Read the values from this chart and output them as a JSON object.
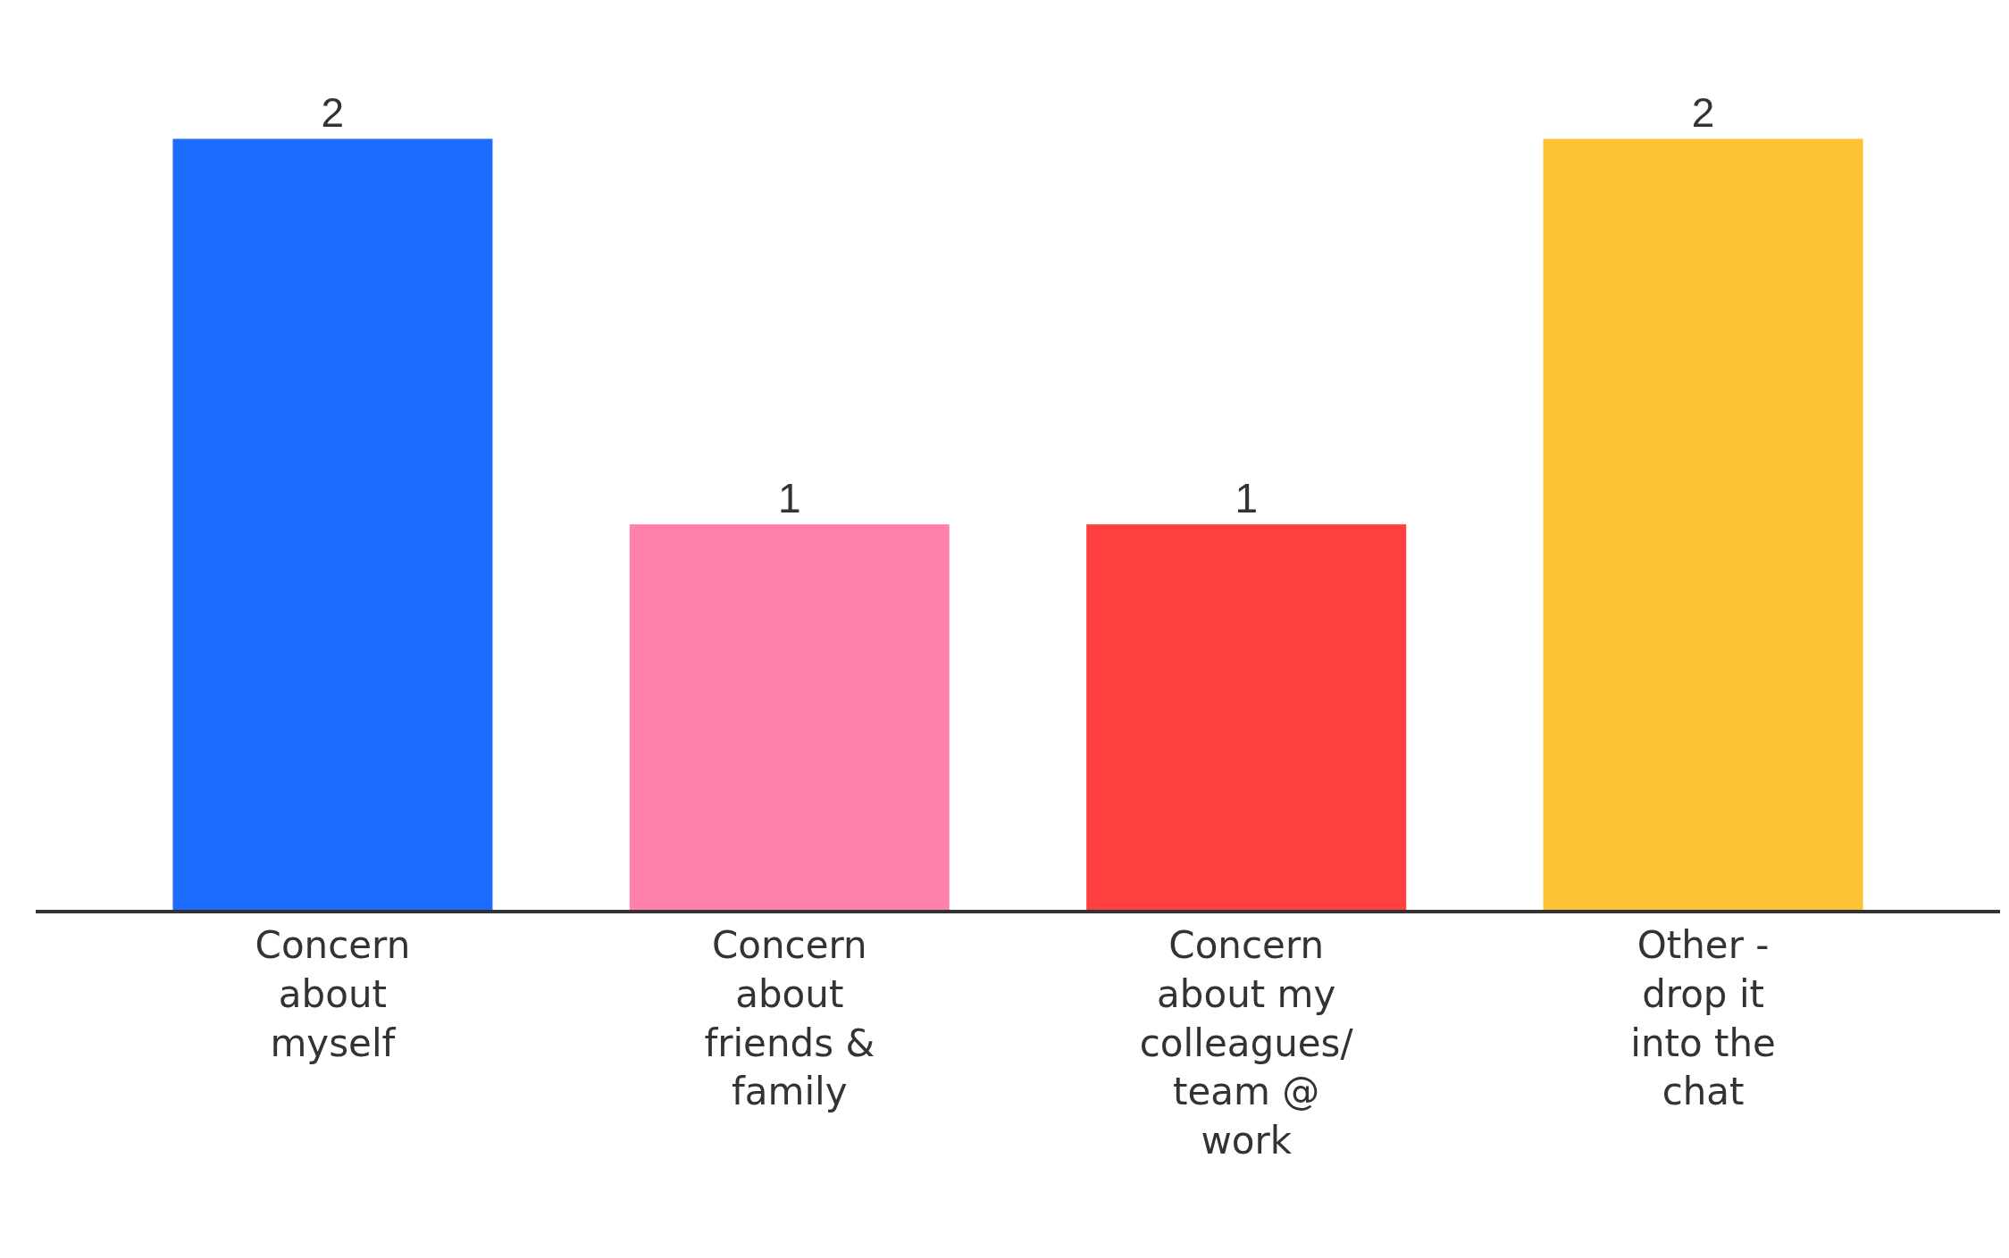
{
  "chart_data": {
    "type": "bar",
    "categories": [
      "Concern about myself",
      "Concern about friends & family",
      "Concern about my colleagues/ team @ work",
      "Other - drop it into the chat"
    ],
    "values": [
      2,
      1,
      1,
      2
    ],
    "colors": [
      "#1e6bff",
      "#ff80aa",
      "#ff4040",
      "#fdc335"
    ],
    "data_labels": true
  }
}
